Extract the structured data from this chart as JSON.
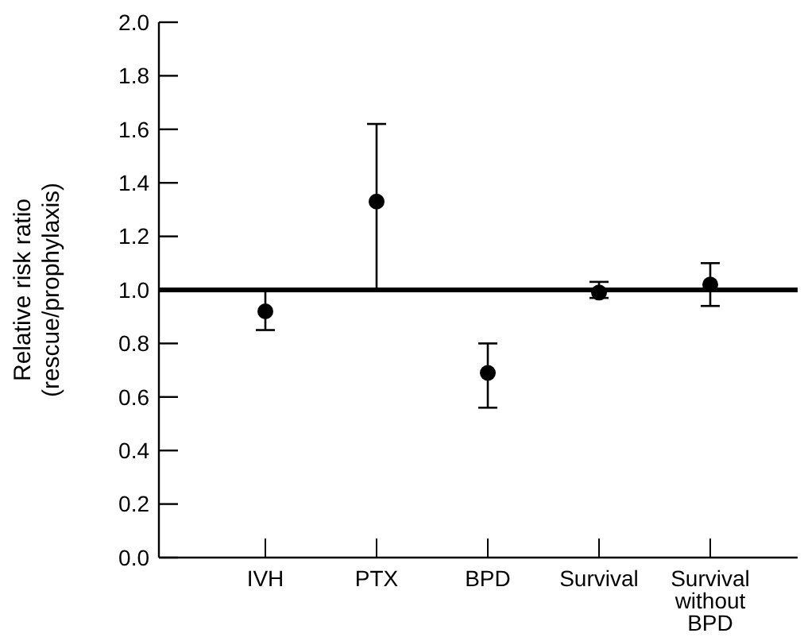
{
  "chart_data": {
    "type": "scatter",
    "ylabel": "Relative risk ratio\n(rescue/prophylaxis)",
    "categories": [
      "IVH",
      "PTX",
      "BPD",
      "Survival",
      "Survival\nwithout\nBPD"
    ],
    "values": [
      0.92,
      1.33,
      0.69,
      0.99,
      1.02
    ],
    "errors": [
      [
        0.85,
        1.0
      ],
      [
        1.0,
        1.62
      ],
      [
        0.56,
        0.8
      ],
      [
        0.97,
        1.03
      ],
      [
        0.94,
        1.1
      ]
    ],
    "color": "#000000",
    "marker": "circle",
    "ylim": [
      0,
      2
    ],
    "yticks": [
      {
        "value": 0,
        "label": "0.0"
      },
      {
        "value": 0.2,
        "label": "0.2"
      },
      {
        "value": 0.4,
        "label": "0.4"
      },
      {
        "value": 0.6,
        "label": "0.6"
      },
      {
        "value": 0.8,
        "label": "0.8"
      },
      {
        "value": 1,
        "label": "1.0"
      },
      {
        "value": 1.2,
        "label": "1.2"
      },
      {
        "value": 1.4,
        "label": "1.4"
      },
      {
        "value": 1.6,
        "label": "1.6"
      },
      {
        "value": 1.8,
        "label": "1.8"
      },
      {
        "value": 2,
        "label": "2.0"
      }
    ],
    "ref_lines": [
      {
        "axis": "y",
        "value": 1
      }
    ],
    "grid": false
  }
}
